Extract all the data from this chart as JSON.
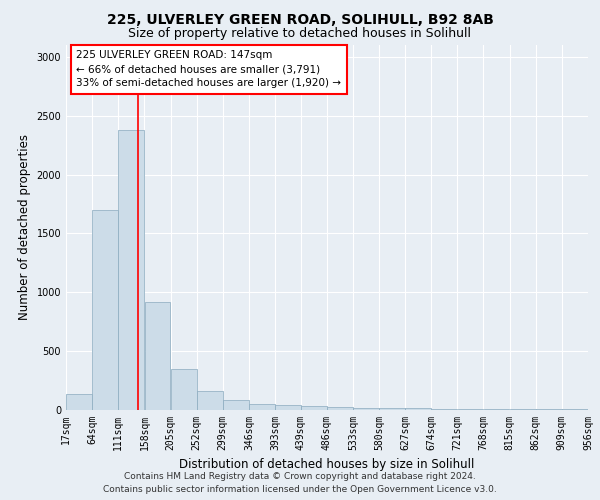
{
  "title1": "225, ULVERLEY GREEN ROAD, SOLIHULL, B92 8AB",
  "title2": "Size of property relative to detached houses in Solihull",
  "xlabel": "Distribution of detached houses by size in Solihull",
  "ylabel": "Number of detached properties",
  "footer1": "Contains HM Land Registry data © Crown copyright and database right 2024.",
  "footer2": "Contains public sector information licensed under the Open Government Licence v3.0.",
  "annotation_line1": "225 ULVERLEY GREEN ROAD: 147sqm",
  "annotation_line2": "← 66% of detached houses are smaller (3,791)",
  "annotation_line3": "33% of semi-detached houses are larger (1,920) →",
  "bar_left_edges": [
    17,
    64,
    111,
    158,
    205,
    252,
    299,
    346,
    393,
    439,
    486,
    533,
    580,
    627,
    674,
    721,
    768,
    815,
    862,
    909
  ],
  "bar_widths": [
    47,
    47,
    47,
    47,
    47,
    47,
    47,
    47,
    47,
    47,
    47,
    47,
    47,
    47,
    47,
    47,
    47,
    47,
    47,
    47
  ],
  "bar_heights": [
    140,
    1700,
    2380,
    920,
    345,
    160,
    85,
    55,
    40,
    30,
    25,
    20,
    20,
    15,
    12,
    10,
    8,
    6,
    5,
    5
  ],
  "bar_color": "#ccdce8",
  "bar_edge_color": "#8aaabe",
  "red_line_x": 147,
  "ylim": [
    0,
    3100
  ],
  "yticks": [
    0,
    500,
    1000,
    1500,
    2000,
    2500,
    3000
  ],
  "tick_labels": [
    "17sqm",
    "64sqm",
    "111sqm",
    "158sqm",
    "205sqm",
    "252sqm",
    "299sqm",
    "346sqm",
    "393sqm",
    "439sqm",
    "486sqm",
    "533sqm",
    "580sqm",
    "627sqm",
    "674sqm",
    "721sqm",
    "768sqm",
    "815sqm",
    "862sqm",
    "909sqm",
    "956sqm"
  ],
  "background_color": "#e8eef4",
  "plot_bg_color": "#e8eef4",
  "grid_color": "#ffffff",
  "title1_fontsize": 10,
  "title2_fontsize": 9,
  "axis_label_fontsize": 8.5,
  "tick_fontsize": 7,
  "annotation_fontsize": 7.5,
  "footer_fontsize": 6.5
}
